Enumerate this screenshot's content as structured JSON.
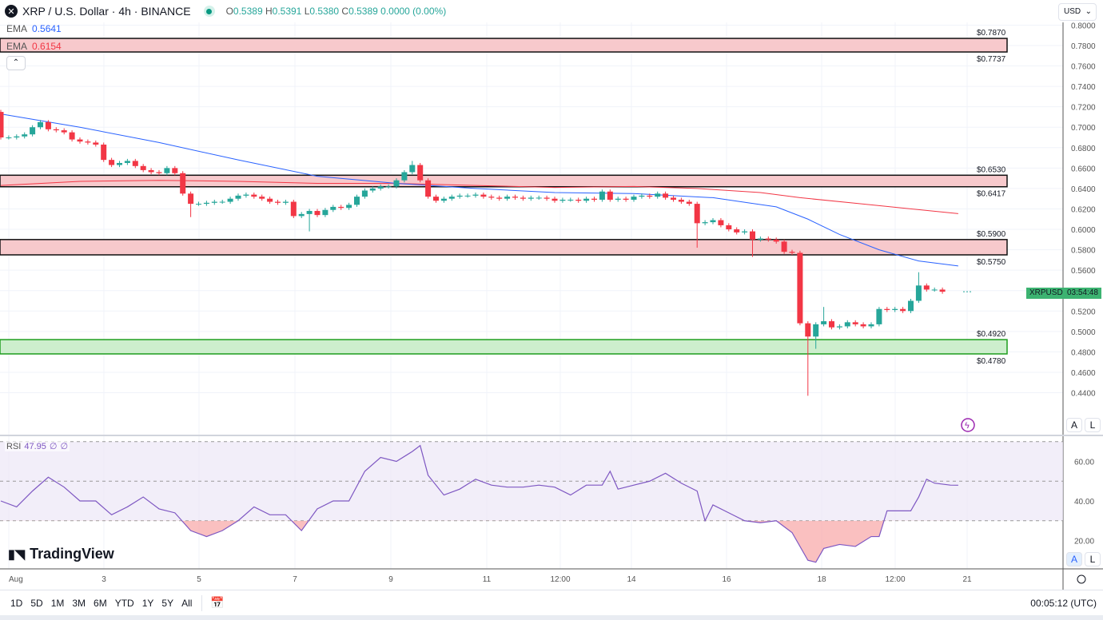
{
  "header": {
    "symbol": "XRP / U.S. Dollar · 4h · BINANCE",
    "open": "0.5389",
    "high": "0.5391",
    "low": "0.5380",
    "close": "0.5389",
    "change": "0.0000 (0.00%)",
    "o_label": "O",
    "h_label": "H",
    "l_label": "L",
    "c_label": "C"
  },
  "indicators": [
    {
      "name": "EMA",
      "value": "0.5641",
      "color": "#2962ff"
    },
    {
      "name": "EMA",
      "value": "0.6154",
      "color": "#f23645"
    }
  ],
  "currency": "USD",
  "symbol_tag": {
    "name": "XRPUSD",
    "countdown": "03:54:48"
  },
  "rsi": {
    "label": "RSI",
    "value": "47.95",
    "extra1": "∅",
    "extra2": "∅",
    "ticks": [
      "60.00",
      "40.00",
      "20.00"
    ]
  },
  "zones": [
    {
      "top": 0.787,
      "bottom": 0.7737,
      "top_label": "$0.7870",
      "bottom_label": "$0.7737",
      "color": "#f7c9cc"
    },
    {
      "top": 0.653,
      "bottom": 0.6417,
      "top_label": "$0.6530",
      "bottom_label": "$0.6417",
      "color": "#f7c9cc"
    },
    {
      "top": 0.59,
      "bottom": 0.575,
      "top_label": "$0.5900",
      "bottom_label": "$0.5750",
      "color": "#f7c9cc"
    },
    {
      "top": 0.492,
      "bottom": 0.478,
      "top_label": "$0.4920",
      "bottom_label": "$0.4780",
      "color": "#cdeecd"
    }
  ],
  "price_ticks": [
    "0.8000",
    "0.7800",
    "0.7600",
    "0.7400",
    "0.7200",
    "0.7000",
    "0.6800",
    "0.6600",
    "0.6400",
    "0.6200",
    "0.6000",
    "0.5800",
    "0.5600",
    "0.5200",
    "0.5000",
    "0.4800",
    "0.4600",
    "0.4400"
  ],
  "time_ticks": [
    "Aug",
    "3",
    "5",
    "7",
    "9",
    "11",
    "12:00",
    "14",
    "16",
    "18",
    "12:00",
    "21"
  ],
  "ranges": [
    "1D",
    "5D",
    "1M",
    "3M",
    "6M",
    "YTD",
    "1Y",
    "5Y",
    "All"
  ],
  "clock": "00:05:12 (UTC)",
  "brand": "TradingView",
  "axis_buttons": [
    "A",
    "L"
  ],
  "chart_data": {
    "type": "candlestick",
    "interval": "4h",
    "first_open": 0.715,
    "closes": [
      0.69,
      0.69,
      0.691,
      0.693,
      0.7,
      0.705,
      0.698,
      0.697,
      0.695,
      0.688,
      0.686,
      0.685,
      0.683,
      0.668,
      0.663,
      0.665,
      0.667,
      0.662,
      0.658,
      0.656,
      0.655,
      0.66,
      0.655,
      0.635,
      0.625,
      0.625,
      0.626,
      0.627,
      0.627,
      0.63,
      0.633,
      0.634,
      0.632,
      0.63,
      0.627,
      0.626,
      0.627,
      0.613,
      0.615,
      0.618,
      0.614,
      0.619,
      0.622,
      0.621,
      0.624,
      0.632,
      0.638,
      0.64,
      0.642,
      0.642,
      0.648,
      0.656,
      0.663,
      0.648,
      0.632,
      0.628,
      0.63,
      0.632,
      0.633,
      0.633,
      0.634,
      0.632,
      0.631,
      0.63,
      0.632,
      0.631,
      0.63,
      0.631,
      0.631,
      0.63,
      0.628,
      0.629,
      0.629,
      0.628,
      0.63,
      0.629,
      0.637,
      0.629,
      0.63,
      0.629,
      0.632,
      0.633,
      0.632,
      0.635,
      0.631,
      0.629,
      0.627,
      0.625,
      0.606,
      0.607,
      0.609,
      0.604,
      0.6,
      0.597,
      0.598,
      0.59,
      0.591,
      0.59,
      0.588,
      0.578,
      0.577,
      0.508,
      0.495,
      0.507,
      0.51,
      0.504,
      0.505,
      0.509,
      0.507,
      0.505,
      0.507,
      0.522,
      0.521,
      0.522,
      0.52,
      0.53,
      0.545,
      0.541,
      0.541,
      0.5389
    ],
    "special_lows": {
      "102": 0.437,
      "103": 0.483,
      "95": 0.573,
      "88": 0.582,
      "39": 0.598,
      "24": 0.612
    },
    "special_highs": {
      "52": 0.667,
      "116": 0.558,
      "104": 0.524
    },
    "ema_fast": [
      [
        0,
        0.713
      ],
      [
        10,
        0.7
      ],
      [
        20,
        0.685
      ],
      [
        30,
        0.668
      ],
      [
        40,
        0.652
      ],
      [
        50,
        0.645
      ],
      [
        60,
        0.64
      ],
      [
        70,
        0.636
      ],
      [
        80,
        0.635
      ],
      [
        90,
        0.631
      ],
      [
        98,
        0.622
      ],
      [
        102,
        0.61
      ],
      [
        106,
        0.595
      ],
      [
        111,
        0.58
      ],
      [
        116,
        0.569
      ],
      [
        121,
        0.5641
      ]
    ],
    "ema_slow": [
      [
        0,
        0.643
      ],
      [
        10,
        0.647
      ],
      [
        20,
        0.648
      ],
      [
        30,
        0.647
      ],
      [
        40,
        0.645
      ],
      [
        50,
        0.645
      ],
      [
        60,
        0.643
      ],
      [
        70,
        0.641
      ],
      [
        80,
        0.642
      ],
      [
        88,
        0.64
      ],
      [
        96,
        0.636
      ],
      [
        101,
        0.631
      ],
      [
        110,
        0.624
      ],
      [
        121,
        0.6154
      ]
    ],
    "rsi": [
      [
        0,
        40
      ],
      [
        2,
        37
      ],
      [
        4,
        45
      ],
      [
        6,
        52
      ],
      [
        8,
        47
      ],
      [
        10,
        40
      ],
      [
        12,
        40
      ],
      [
        14,
        33
      ],
      [
        16,
        37
      ],
      [
        18,
        42
      ],
      [
        20,
        36
      ],
      [
        22,
        34
      ],
      [
        24,
        25
      ],
      [
        26,
        22
      ],
      [
        28,
        25
      ],
      [
        30,
        30
      ],
      [
        32,
        37
      ],
      [
        34,
        33
      ],
      [
        36,
        33
      ],
      [
        38,
        25
      ],
      [
        40,
        36
      ],
      [
        42,
        40
      ],
      [
        44,
        40
      ],
      [
        46,
        55
      ],
      [
        48,
        62
      ],
      [
        50,
        60
      ],
      [
        52,
        65
      ],
      [
        53,
        68
      ],
      [
        54,
        53
      ],
      [
        56,
        43
      ],
      [
        58,
        46
      ],
      [
        60,
        51
      ],
      [
        62,
        48
      ],
      [
        64,
        47
      ],
      [
        66,
        47
      ],
      [
        68,
        48
      ],
      [
        70,
        47
      ],
      [
        72,
        43
      ],
      [
        74,
        48
      ],
      [
        76,
        48
      ],
      [
        77,
        55
      ],
      [
        78,
        46
      ],
      [
        80,
        48
      ],
      [
        82,
        50
      ],
      [
        84,
        54
      ],
      [
        86,
        49
      ],
      [
        88,
        45
      ],
      [
        89,
        30
      ],
      [
        90,
        38
      ],
      [
        92,
        34
      ],
      [
        94,
        30
      ],
      [
        96,
        29
      ],
      [
        98,
        30
      ],
      [
        100,
        24
      ],
      [
        102,
        10
      ],
      [
        103,
        9
      ],
      [
        104,
        16
      ],
      [
        106,
        18
      ],
      [
        108,
        17
      ],
      [
        110,
        22
      ],
      [
        111,
        22
      ],
      [
        112,
        35
      ],
      [
        114,
        35
      ],
      [
        115,
        35
      ],
      [
        116,
        42
      ],
      [
        117,
        51
      ],
      [
        118,
        49
      ],
      [
        120,
        48
      ],
      [
        121,
        47.95
      ]
    ],
    "rsi_bands": [
      70,
      50,
      30
    ],
    "ylim": [
      0.42,
      0.8
    ]
  }
}
